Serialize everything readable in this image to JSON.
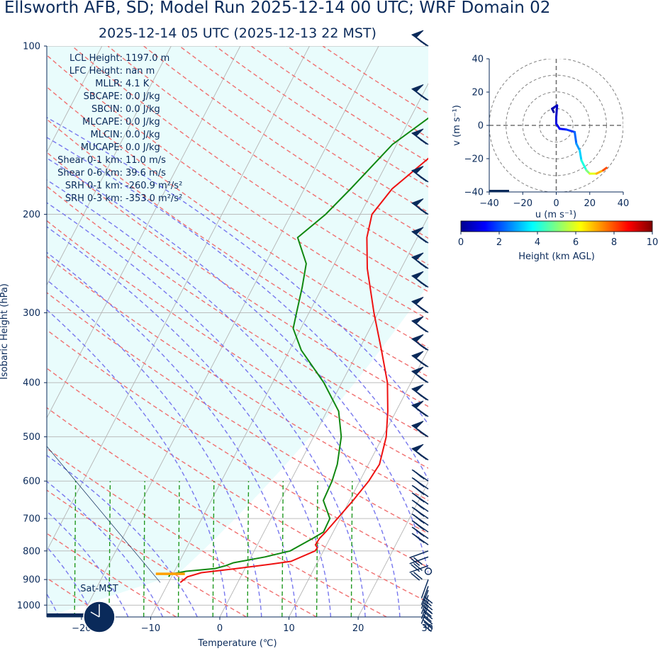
{
  "title": "Ellsworth AFB, SD; Model Run 2025-12-14 00 UTC; WRF Domain 02",
  "subtitle": "2025-12-14 05 UTC  (2025-12-13 22 MST)",
  "indices": [
    "LCL Height: 1197.0 m",
    "LFC Height: nan m",
    "MLLR: 4.1 K",
    "SBCAPE: 0.0 J/kg",
    "SBCIN: 0.0 J/kg",
    "MLCAPE: 0.0 J/kg",
    "MLCIN: 0.0 J/kg",
    "MUCAPE: 0.0 J/kg",
    "Shear 0-1 km: 11.0 m/s",
    "Shear 0-6 km: 39.6 m/s",
    "SRH 0-1 km: -260.9 m²/s²",
    "SRH 0-3 km: -353.0 m²/s²"
  ],
  "sun_label": "Sat-MST",
  "colors": {
    "temperature": "#ee1111",
    "dewpoint": "#118811",
    "dry_adiabat": "#f07070",
    "moist_adiabat": "#7777ee",
    "mixing_ratio": "#229922",
    "parcel_fill": "#e9fcfc",
    "text": "#0a2a5a",
    "lcl_marker": "#ffa000"
  },
  "chart_data": [
    {
      "type": "line",
      "name": "skew-t",
      "xlabel": "Temperature (℃)",
      "ylabel": "Isobaric Height (hPa)",
      "xlim": [
        -25,
        30
      ],
      "ylim": [
        1050,
        100
      ],
      "y_scale": "log",
      "x_ticks": [
        -20,
        -10,
        0,
        10,
        20,
        30
      ],
      "y_ticks": [
        100,
        200,
        300,
        400,
        500,
        600,
        700,
        800,
        900,
        1000
      ],
      "grid": true,
      "temperature": {
        "p": [
          911,
          890,
          875,
          860,
          845,
          835,
          800,
          790,
          780,
          760,
          740,
          700,
          650,
          600,
          560,
          500,
          450,
          400,
          350,
          300,
          250,
          220,
          200,
          180,
          150,
          130,
          100
        ],
        "t": [
          -8.3,
          -7.7,
          -6.0,
          -1.2,
          3.4,
          6.1,
          8.8,
          8.9,
          8.4,
          8.5,
          8.9,
          9.6,
          10.5,
          11.3,
          11.6,
          10.5,
          8.8,
          6.6,
          3.3,
          -0.6,
          -4.9,
          -7.3,
          -8.3,
          -7.3,
          -3.0,
          2.9,
          21.9
        ]
      },
      "dewpoint": {
        "p": [
          890,
          880,
          870,
          860,
          850,
          840,
          820,
          800,
          760,
          740,
          700,
          650,
          600,
          560,
          500,
          450,
          400,
          350,
          320,
          300,
          270,
          245,
          220,
          200,
          180,
          150,
          125,
          100
        ],
        "t": [
          -10.4,
          -10.4,
          -8.3,
          -4.3,
          -3.0,
          -2.1,
          2.0,
          5.2,
          7.5,
          8.6,
          8.5,
          6.2,
          6.0,
          5.5,
          4.0,
          1.7,
          -2.6,
          -8.3,
          -11.1,
          -11.8,
          -12.9,
          -14.1,
          -17.3,
          -15.0,
          -13.3,
          -10.6,
          -5.2,
          3.1
        ]
      },
      "lcl_pressure": 879,
      "lcl_temperature_range": [
        -12.5,
        -8.3
      ],
      "sounding_winds_note": "wind barbs on right margin from 1000 to 100 hPa"
    },
    {
      "type": "line",
      "name": "hodograph",
      "xlabel": "u (m s⁻¹)",
      "ylabel": "v (m s⁻¹)",
      "xlim": [
        -40,
        40
      ],
      "ylim": [
        -40,
        40
      ],
      "x_ticks": [
        -40,
        -20,
        0,
        20,
        40
      ],
      "y_ticks": [
        -40,
        -20,
        0,
        20,
        40
      ],
      "rings": [
        10,
        20,
        30,
        40
      ],
      "colorbar": {
        "label": "Height (km AGL)",
        "ticks": [
          0,
          2,
          4,
          6,
          8,
          10
        ],
        "range": [
          0,
          10
        ]
      },
      "points": [
        {
          "u": -1.5,
          "v": 8,
          "h": 0.1
        },
        {
          "u": -2.5,
          "v": 10,
          "h": 0.3
        },
        {
          "u": 0.5,
          "v": 12,
          "h": 0.5
        },
        {
          "u": 0,
          "v": 5,
          "h": 0.7
        },
        {
          "u": 0,
          "v": 1,
          "h": 0.9
        },
        {
          "u": 2,
          "v": -2,
          "h": 1.1
        },
        {
          "u": 6,
          "v": -2.5,
          "h": 1.5
        },
        {
          "u": 11,
          "v": -4,
          "h": 2.0
        },
        {
          "u": 12,
          "v": -11,
          "h": 2.5
        },
        {
          "u": 14,
          "v": -15,
          "h": 3.0
        },
        {
          "u": 15,
          "v": -21,
          "h": 3.6
        },
        {
          "u": 18,
          "v": -27,
          "h": 4.5
        },
        {
          "u": 20,
          "v": -29,
          "h": 5.5
        },
        {
          "u": 24,
          "v": -29,
          "h": 6.5
        },
        {
          "u": 28,
          "v": -27,
          "h": 7.5
        },
        {
          "u": 30,
          "v": -25.5,
          "h": 8.5
        }
      ]
    }
  ]
}
